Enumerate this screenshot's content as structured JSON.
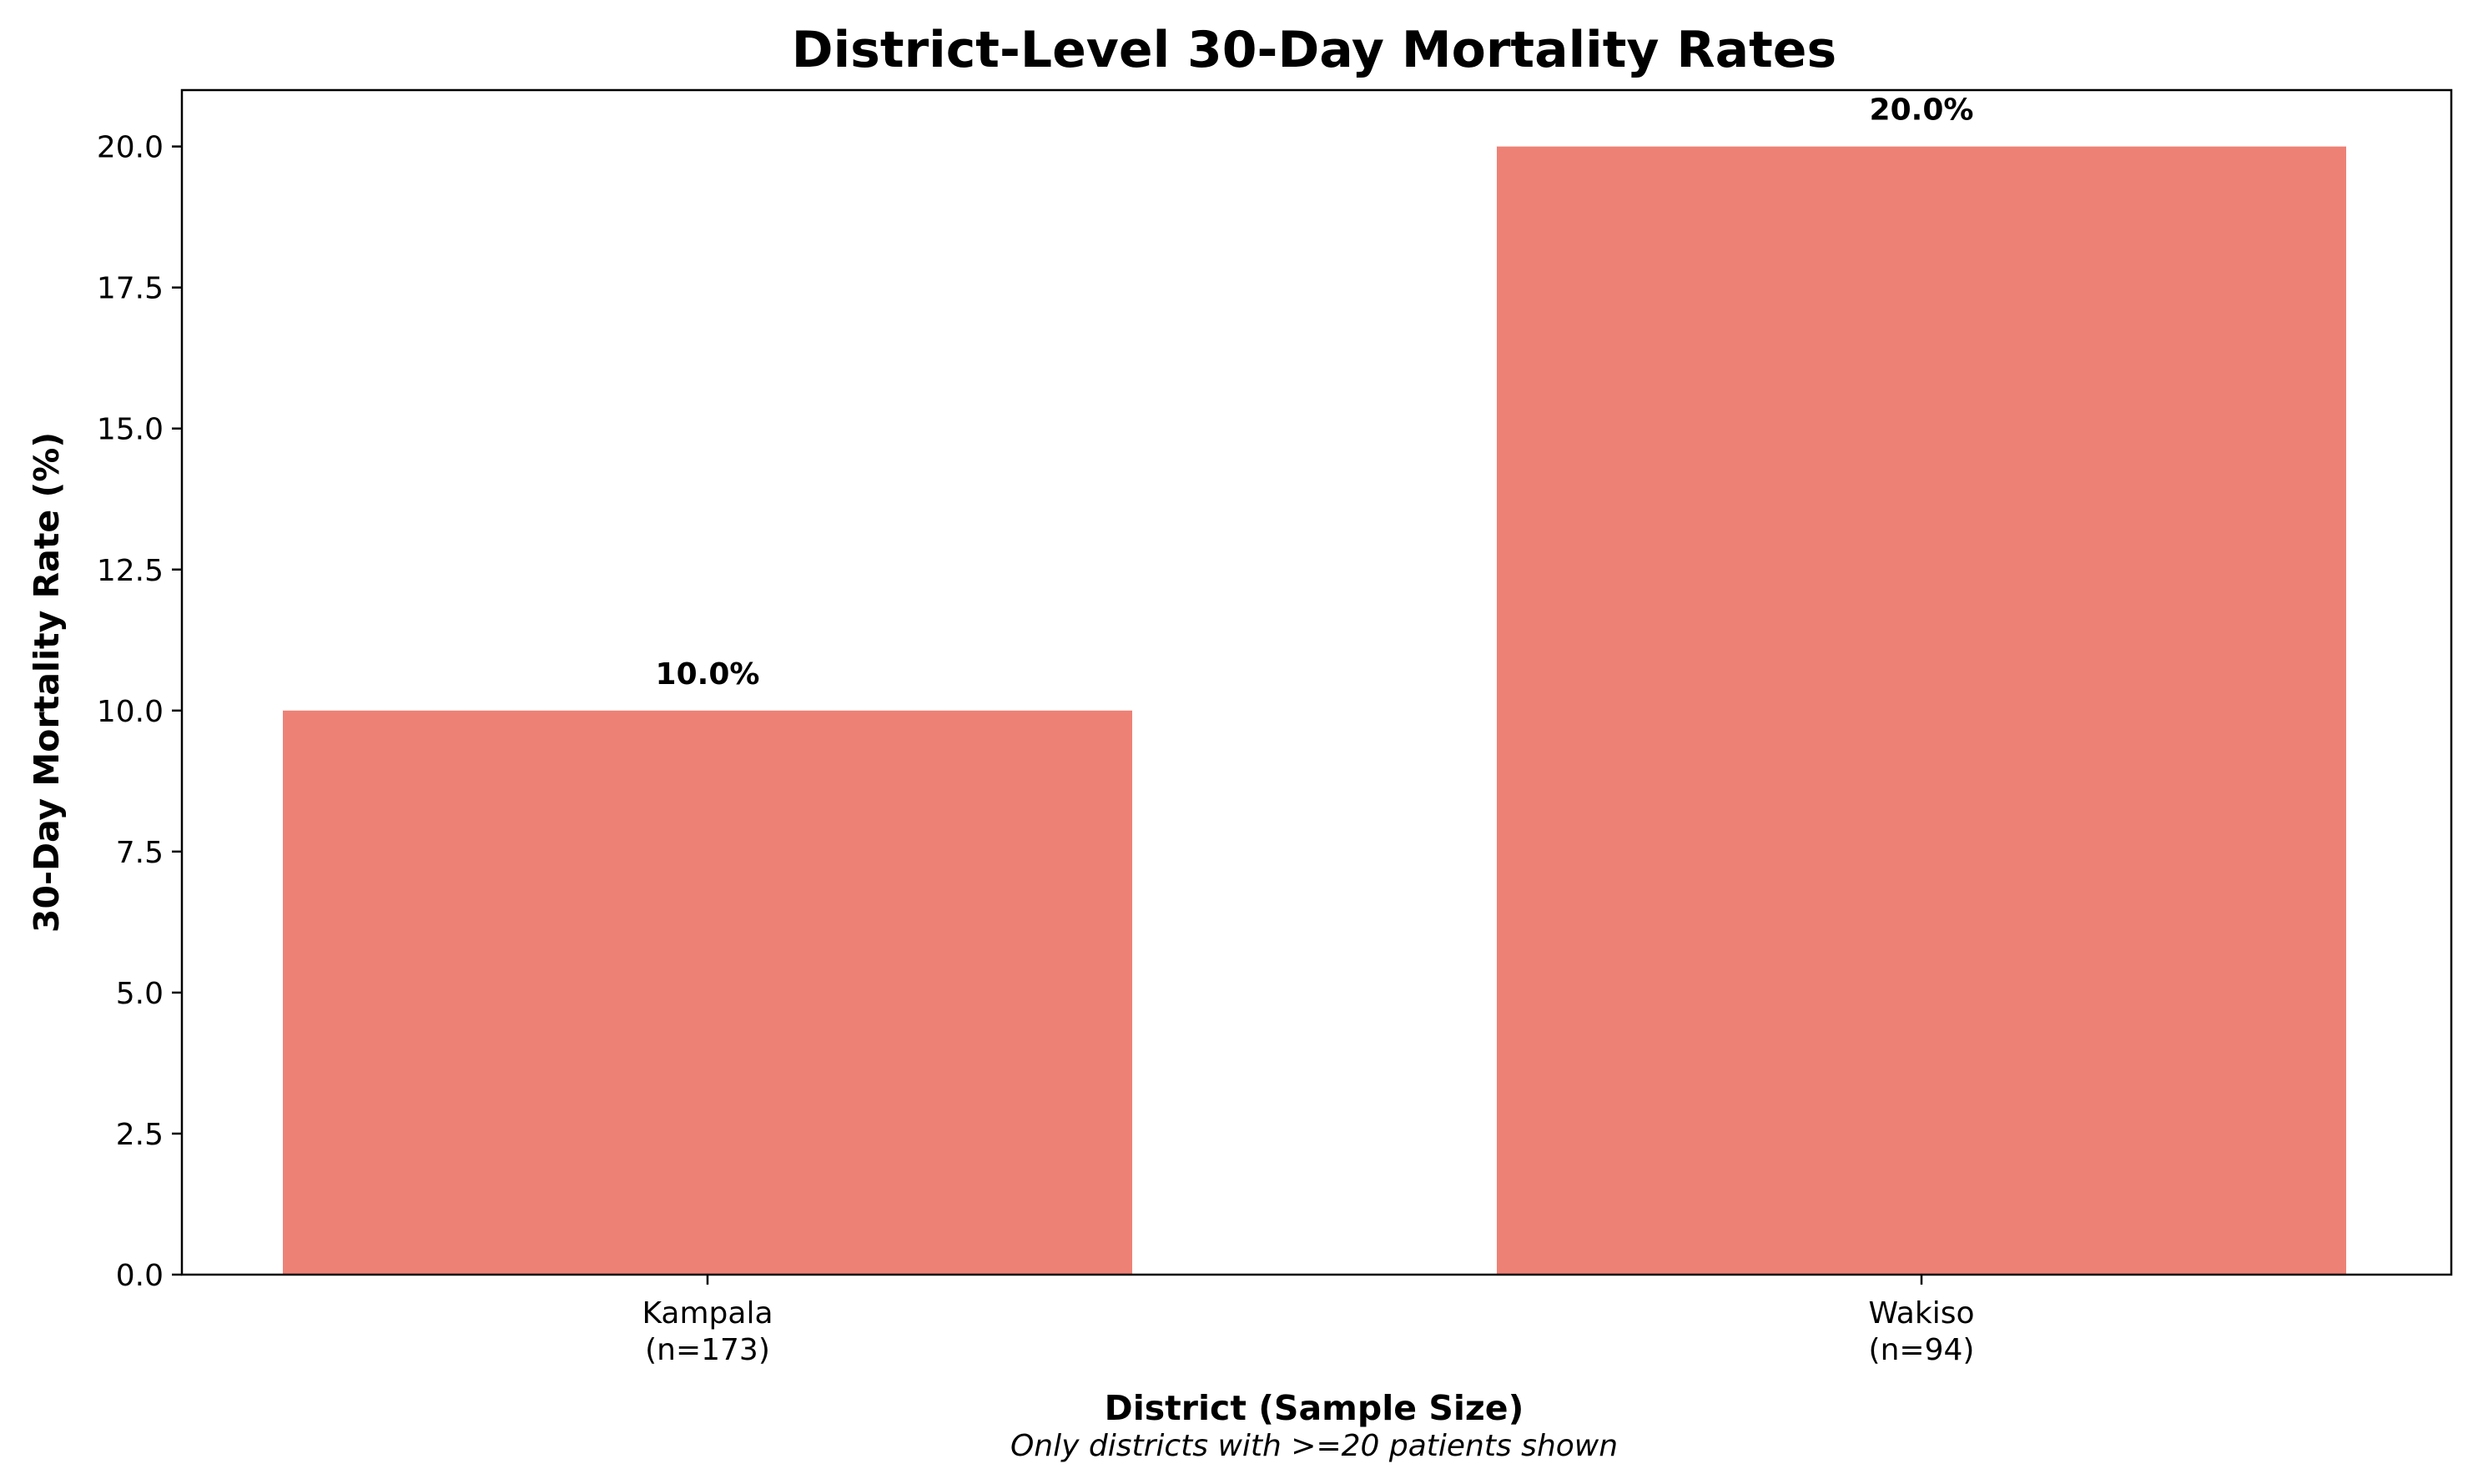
{
  "chart_data": {
    "type": "bar",
    "title": "District-Level 30-Day Mortality Rates",
    "xlabel": "District (Sample Size)",
    "ylabel": "30-Day Mortality Rate (%)",
    "note": "Only districts with >=20 patients shown",
    "categories": [
      {
        "name": "Kampala",
        "sample": "(n=173)"
      },
      {
        "name": "Wakiso",
        "sample": "(n=94)"
      }
    ],
    "values": [
      10.0,
      20.0
    ],
    "value_labels": [
      "10.0%",
      "20.0%"
    ],
    "ylim": [
      0,
      21
    ],
    "yticks": [
      0.0,
      2.5,
      5.0,
      7.5,
      10.0,
      12.5,
      15.0,
      17.5,
      20.0
    ],
    "ytick_labels": [
      "0.0",
      "2.5",
      "5.0",
      "7.5",
      "10.0",
      "12.5",
      "15.0",
      "17.5",
      "20.0"
    ],
    "grid": false,
    "legend": "none",
    "bar_color": "#ee8176"
  }
}
